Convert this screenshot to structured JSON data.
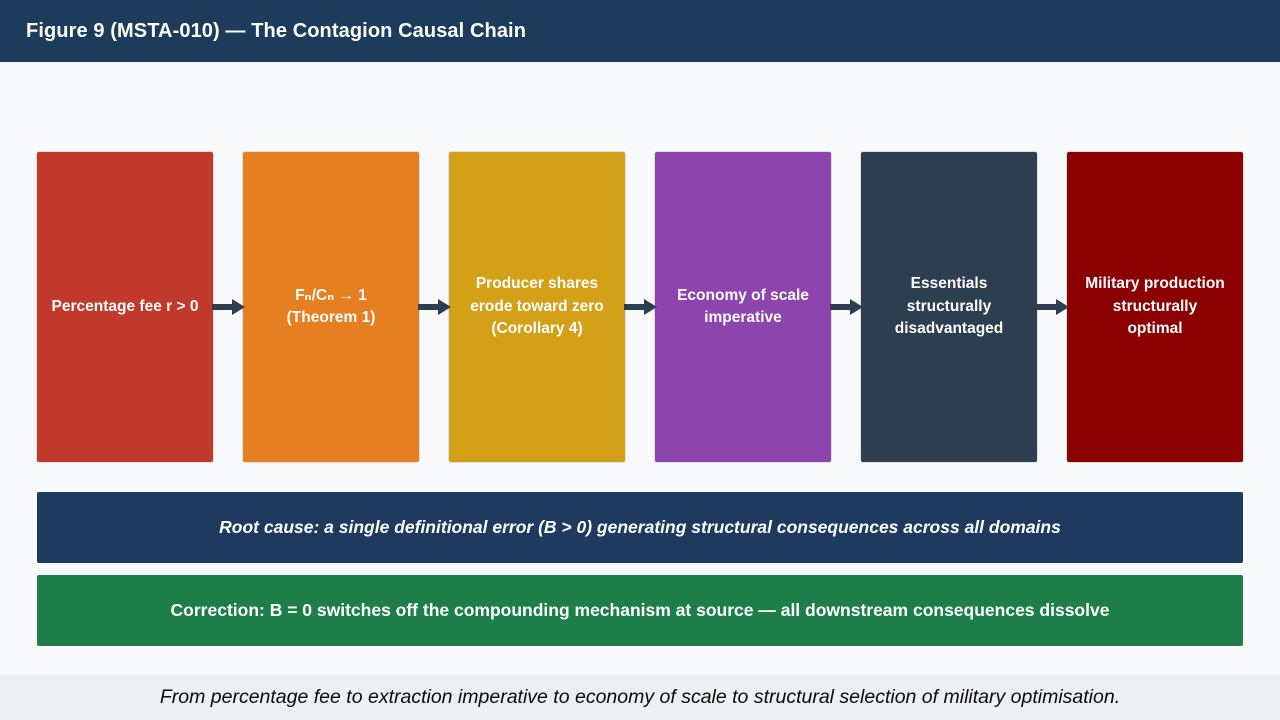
{
  "header": {
    "title": "Figure 9 (MSTA-010) — The Contagion Causal Chain",
    "bg": "#1d3c5c"
  },
  "flow": {
    "arrow_color": "#2c3e50",
    "steps": [
      {
        "id": "percentage-fee",
        "label": "Percentage fee r > 0",
        "color": "#c0392b"
      },
      {
        "id": "ratio-theorem",
        "label": "Fₙ/Cₙ → 1\n(Theorem 1)",
        "color": "#e67e22"
      },
      {
        "id": "producer-shares",
        "label": "Producer shares\nerode toward zero\n(Corollary 4)",
        "color": "#d4a017"
      },
      {
        "id": "economy-of-scale",
        "label": "Economy of scale\nimperative",
        "color": "#8e44ad"
      },
      {
        "id": "essentials",
        "label": "Essentials\nstructurally\ndisadvantaged",
        "color": "#2c3e50"
      },
      {
        "id": "military-production",
        "label": "Military production\nstructurally\noptimal",
        "color": "#8b0000"
      }
    ]
  },
  "banners": {
    "root_cause": {
      "text": "Root cause: a single definitional error (B > 0) generating structural consequences across all domains",
      "bg": "#1e3a5f"
    },
    "correction": {
      "text": "Correction: B = 0 switches off the compounding mechanism at source — all downstream consequences dissolve",
      "bg": "#1e7e4a"
    }
  },
  "footer": {
    "caption": "From percentage fee to extraction imperative to economy of scale to structural selection of military optimisation.",
    "bg": "#ecf0f1"
  }
}
